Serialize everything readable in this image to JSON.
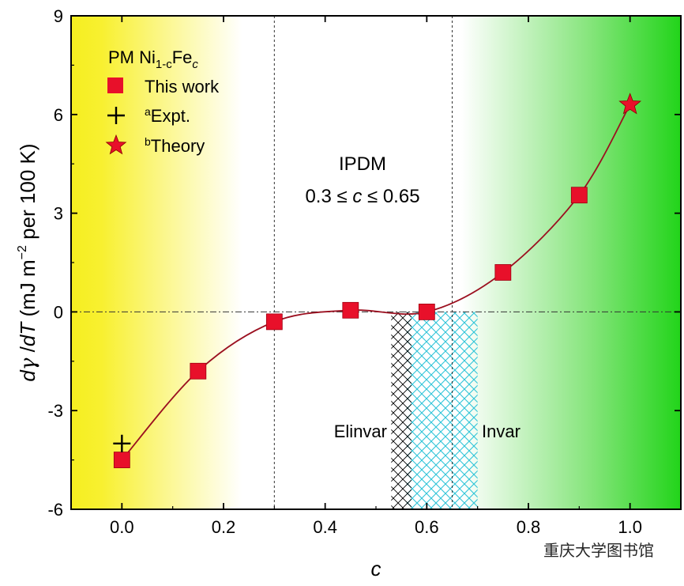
{
  "chart_data": {
    "type": "scatter",
    "xlabel": "c",
    "ylabel_parts": {
      "d1": "d",
      "gamma": "γ",
      "slash": " /",
      "d2": "d",
      "T": "T",
      "unit_pre": " (mJ m",
      "unit_sup": "−2",
      "unit_post": " per 100 K)"
    },
    "xlim": [
      -0.1,
      1.1
    ],
    "ylim": [
      -6,
      9
    ],
    "xticks": [
      0.0,
      0.2,
      0.4,
      0.6,
      0.8,
      1.0
    ],
    "xtick_labels": [
      "0.0",
      "0.2",
      "0.4",
      "0.6",
      "0.8",
      "1.0"
    ],
    "yticks": [
      -6,
      -3,
      0,
      3,
      6,
      9
    ],
    "ytick_labels": [
      "-6",
      "-3",
      "0",
      "3",
      "6",
      "9"
    ],
    "grid": false,
    "legend": {
      "placement": "top-left",
      "title_parts": {
        "main": "PM Ni",
        "sub1": "1-c",
        "mid": "Fe",
        "sub2": "c"
      },
      "entries": [
        {
          "marker": "square",
          "label": "This work"
        },
        {
          "marker": "plus",
          "sup": "a",
          "label": "Expt."
        },
        {
          "marker": "star",
          "sup": "b",
          "label": "Theory"
        }
      ]
    },
    "series": [
      {
        "name": "This work",
        "marker": "square",
        "color": "#e8102a",
        "x": [
          0.0,
          0.15,
          0.3,
          0.45,
          0.6,
          0.75,
          0.9
        ],
        "y": [
          -4.5,
          -1.8,
          -0.3,
          0.05,
          0.0,
          1.2,
          3.55
        ]
      },
      {
        "name": "Expt.",
        "marker": "plus",
        "color": "#000000",
        "x": [
          0.0
        ],
        "y": [
          -4.0
        ]
      },
      {
        "name": "Theory",
        "marker": "star",
        "color": "#e8102a",
        "x": [
          1.0
        ],
        "y": [
          6.3
        ]
      }
    ],
    "fit_curve_color": "#9b1020",
    "vertical_lines": [
      0.3,
      0.65
    ],
    "horizontal_line": 0,
    "regions": [
      {
        "label": "Elinvar",
        "x_range": [
          0.53,
          0.57
        ],
        "y_range": [
          -6,
          0
        ],
        "color": "#000000",
        "label_color": "#4a1a7a"
      },
      {
        "label": "Invar",
        "x_range": [
          0.56,
          0.7
        ],
        "y_range": [
          -6,
          0
        ],
        "color": "#2fc4d8",
        "label_color": "#1f6b74"
      }
    ],
    "annotation": {
      "line1": "IPDM",
      "line2_pre": "0.3 ≤ ",
      "line2_var": "c",
      "line2_post": " ≤ 0.65"
    },
    "background": {
      "left_color": "#f5ee20",
      "right_color": "#22d41a"
    },
    "watermark": "重庆大学图书馆"
  }
}
